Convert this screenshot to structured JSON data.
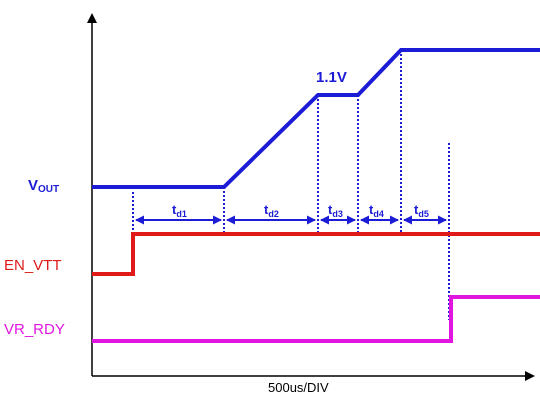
{
  "colors": {
    "vout": "#1c1cd6",
    "en_vtt": "#e01919",
    "vr_rdy": "#e016e0",
    "axis": "#000000",
    "background": "#ffffff"
  },
  "signals": {
    "vout": {
      "label_main": "V",
      "label_sub": "OUT"
    },
    "en_vtt": {
      "label": "EN_VTT"
    },
    "vr_rdy": {
      "label": "VR_RDY"
    }
  },
  "annotations": {
    "vout_plateau": "1.1V"
  },
  "delays": [
    {
      "main": "t",
      "sub": "d1"
    },
    {
      "main": "t",
      "sub": "d2"
    },
    {
      "main": "t",
      "sub": "d3"
    },
    {
      "main": "t",
      "sub": "d4"
    },
    {
      "main": "t",
      "sub": "d5"
    }
  ],
  "axis": {
    "x_label": "500us/DIV"
  }
}
